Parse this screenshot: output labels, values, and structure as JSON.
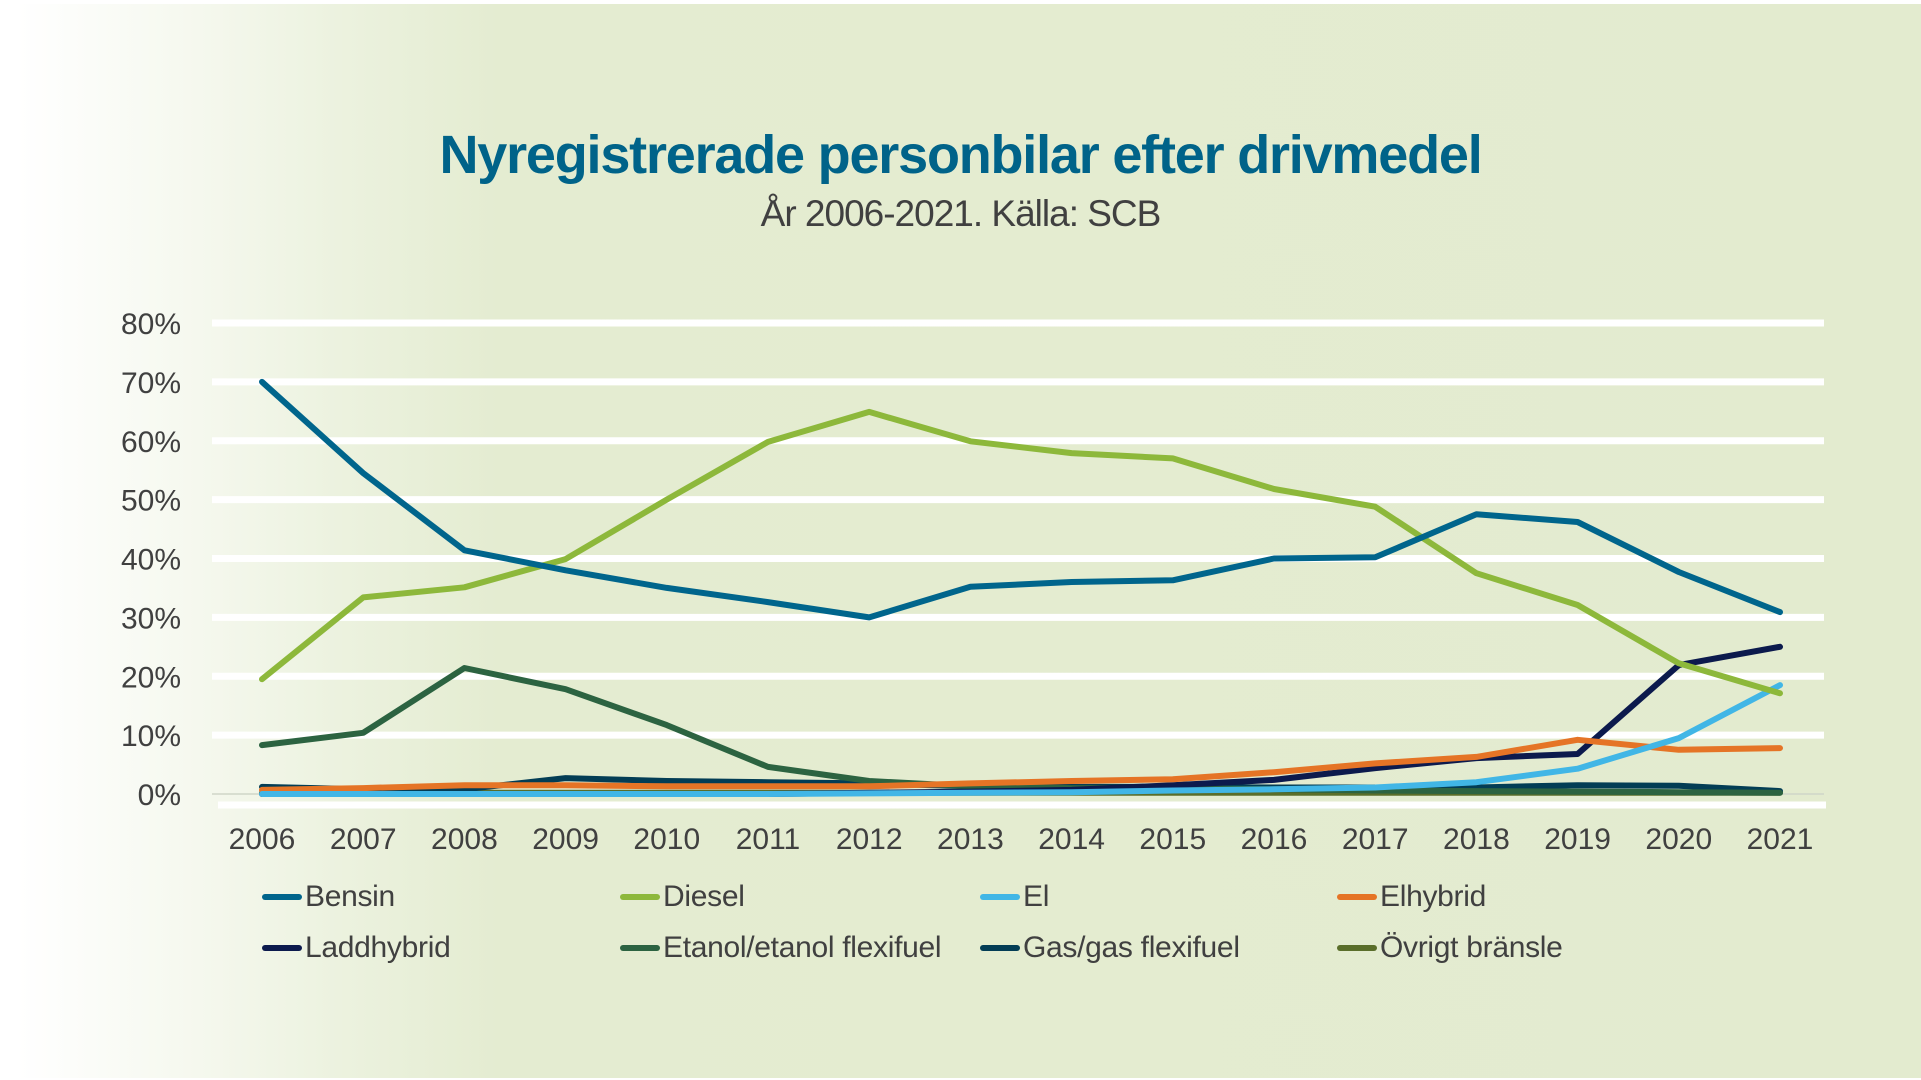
{
  "chart_data": {
    "type": "line",
    "title": "Nyregistrerade personbilar efter drivmedel",
    "subtitle": "År 2006-2021. Källa: SCB",
    "xlabel": "",
    "ylabel": "",
    "ylim": [
      0,
      80
    ],
    "y_ticks": [
      "0%",
      "10%",
      "20%",
      "30%",
      "40%",
      "50%",
      "60%",
      "70%",
      "80%"
    ],
    "y_tick_values": [
      0,
      10,
      20,
      30,
      40,
      50,
      60,
      70,
      80
    ],
    "grid": true,
    "legend_position": "bottom",
    "categories": [
      "2006",
      "2007",
      "2008",
      "2009",
      "2010",
      "2011",
      "2012",
      "2013",
      "2014",
      "2015",
      "2016",
      "2017",
      "2018",
      "2019",
      "2020",
      "2021"
    ],
    "series": [
      {
        "name": "Bensin",
        "color": "#00658c",
        "values": [
          70.0,
          54.5,
          41.4,
          38.0,
          35.0,
          32.6,
          30.0,
          35.2,
          36.0,
          36.3,
          40.0,
          40.2,
          47.5,
          46.2,
          37.7,
          30.9
        ]
      },
      {
        "name": "Diesel",
        "color": "#8db83b",
        "values": [
          19.5,
          33.4,
          35.1,
          39.9,
          50.0,
          59.8,
          64.9,
          59.9,
          57.9,
          57.0,
          51.8,
          48.8,
          37.5,
          32.1,
          22.2,
          17.1
        ]
      },
      {
        "name": "El",
        "color": "#41b6e6",
        "values": [
          0.0,
          0.0,
          0.0,
          0.0,
          0.0,
          0.0,
          0.1,
          0.2,
          0.3,
          0.6,
          0.8,
          1.1,
          2.0,
          4.3,
          9.5,
          18.5
        ]
      },
      {
        "name": "Elhybrid",
        "color": "#e57426",
        "values": [
          0.7,
          1.0,
          1.5,
          1.5,
          1.3,
          1.3,
          1.3,
          1.8,
          2.2,
          2.5,
          3.7,
          5.2,
          6.3,
          9.2,
          7.5,
          7.8
        ]
      },
      {
        "name": "Laddhybrid",
        "color": "#0c1a4d",
        "values": [
          0.0,
          0.0,
          0.0,
          0.0,
          0.0,
          0.0,
          0.2,
          0.4,
          0.7,
          1.5,
          2.4,
          4.4,
          6.1,
          6.8,
          21.9,
          25.0
        ]
      },
      {
        "name": "Etanol/etanol flexifuel",
        "color": "#2c6341",
        "values": [
          8.3,
          10.4,
          21.4,
          17.8,
          11.7,
          4.6,
          2.2,
          1.3,
          1.0,
          1.0,
          0.8,
          0.6,
          0.5,
          0.4,
          0.3,
          0.2
        ]
      },
      {
        "name": "Gas/gas flexifuel",
        "color": "#033d55",
        "values": [
          1.2,
          0.8,
          0.8,
          2.7,
          2.2,
          2.0,
          1.8,
          1.3,
          1.2,
          1.2,
          1.1,
          1.1,
          1.1,
          1.5,
          1.4,
          0.5
        ]
      },
      {
        "name": "Övrigt bränsle",
        "color": "#5a6e2a",
        "values": [
          0.2,
          0.2,
          0.2,
          0.2,
          0.2,
          0.2,
          0.2,
          0.2,
          0.2,
          0.2,
          0.2,
          0.2,
          0.2,
          0.2,
          0.2,
          0.2
        ]
      }
    ]
  }
}
